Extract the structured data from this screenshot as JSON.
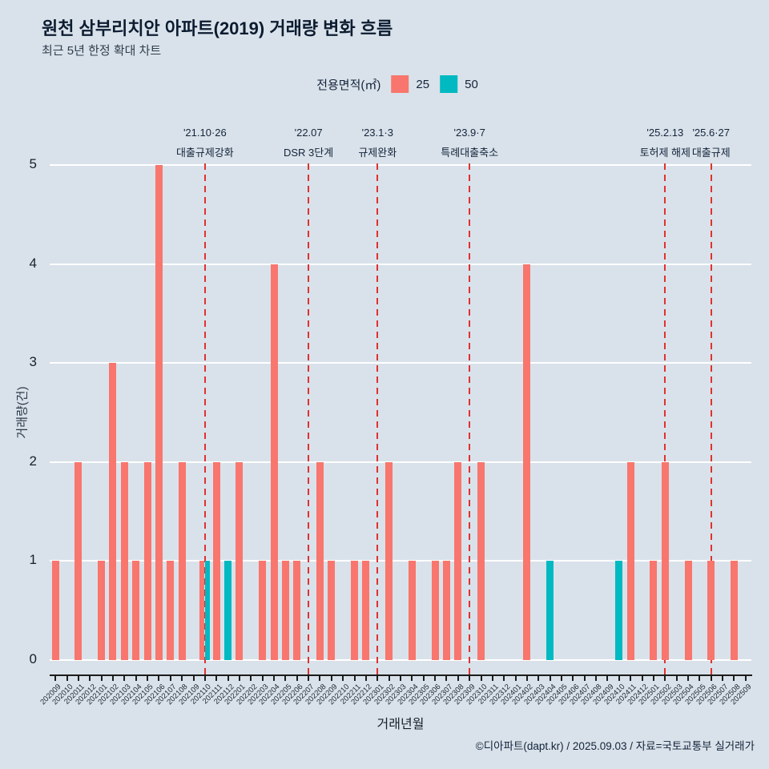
{
  "page": {
    "title": "원천 삼부리치안 아파트(2019) 거래량 변화 흐름",
    "subtitle": "최근 5년 한정 확대 차트",
    "footer": "©디아파트(dapt.kr) / 2025.09.03 / 자료=국토교통부 실거래가"
  },
  "legend": {
    "title": "전용면적(㎡)",
    "items": [
      {
        "label": "25",
        "color": "#f8766d"
      },
      {
        "label": "50",
        "color": "#00b9c1"
      }
    ]
  },
  "chart_data": {
    "type": "bar",
    "title": "원천 삼부리치안 아파트(2019) 거래량 변화 흐름",
    "subtitle": "최근 5년 한정 확대 차트",
    "xlabel": "거래년월",
    "ylabel": "거래량(건)",
    "ylim": [
      0,
      5
    ],
    "yticks": [
      0,
      1,
      2,
      3,
      4,
      5
    ],
    "grid": true,
    "legend_position": "top",
    "event_line_color": "#e03131",
    "categories": [
      "202009",
      "202010",
      "202011",
      "202012",
      "202101",
      "202102",
      "202103",
      "202104",
      "202105",
      "202106",
      "202107",
      "202108",
      "202109",
      "202110",
      "202111",
      "202112",
      "202201",
      "202202",
      "202203",
      "202204",
      "202205",
      "202206",
      "202207",
      "202208",
      "202209",
      "202210",
      "202211",
      "202212",
      "202301",
      "202302",
      "202303",
      "202304",
      "202305",
      "202306",
      "202307",
      "202308",
      "202309",
      "202310",
      "202311",
      "202312",
      "202401",
      "202402",
      "202403",
      "202404",
      "202405",
      "202406",
      "202407",
      "202408",
      "202409",
      "202410",
      "202411",
      "202412",
      "202501",
      "202502",
      "202503",
      "202504",
      "202505",
      "202506",
      "202507",
      "202508",
      "202509"
    ],
    "series": [
      {
        "name": "25",
        "color": "#f8766d",
        "values": [
          1,
          0,
          2,
          0,
          1,
          3,
          2,
          1,
          2,
          5,
          1,
          2,
          0,
          1,
          2,
          0,
          2,
          0,
          1,
          4,
          1,
          1,
          0,
          2,
          1,
          0,
          1,
          1,
          0,
          2,
          0,
          1,
          0,
          1,
          1,
          2,
          0,
          2,
          0,
          0,
          0,
          4,
          0,
          0,
          0,
          0,
          0,
          0,
          0,
          0,
          2,
          0,
          1,
          2,
          0,
          1,
          0,
          1,
          0,
          1,
          0
        ]
      },
      {
        "name": "50",
        "color": "#00b9c1",
        "values": [
          0,
          0,
          0,
          0,
          0,
          0,
          0,
          0,
          0,
          0,
          0,
          0,
          0,
          1,
          0,
          1,
          0,
          0,
          0,
          0,
          0,
          0,
          0,
          0,
          0,
          0,
          0,
          0,
          0,
          0,
          0,
          0,
          0,
          0,
          0,
          0,
          0,
          0,
          0,
          0,
          0,
          0,
          0,
          1,
          0,
          0,
          0,
          0,
          0,
          1,
          0,
          0,
          0,
          0,
          0,
          0,
          0,
          0,
          0,
          0,
          0
        ]
      }
    ],
    "events": [
      {
        "month": "202110",
        "date": "'21.10·26",
        "label": "대출규제강화"
      },
      {
        "month": "202207",
        "date": "'22.07",
        "label": "DSR 3단계"
      },
      {
        "month": "202301",
        "date": "'23.1·3",
        "label": "규제완화"
      },
      {
        "month": "202309",
        "date": "'23.9·7",
        "label": "특례대출축소"
      },
      {
        "month": "202502",
        "date": "'25.2.13",
        "label": "토허제 해제"
      },
      {
        "month": "202506",
        "date": "'25.6·27",
        "label": "대출규제"
      }
    ]
  }
}
